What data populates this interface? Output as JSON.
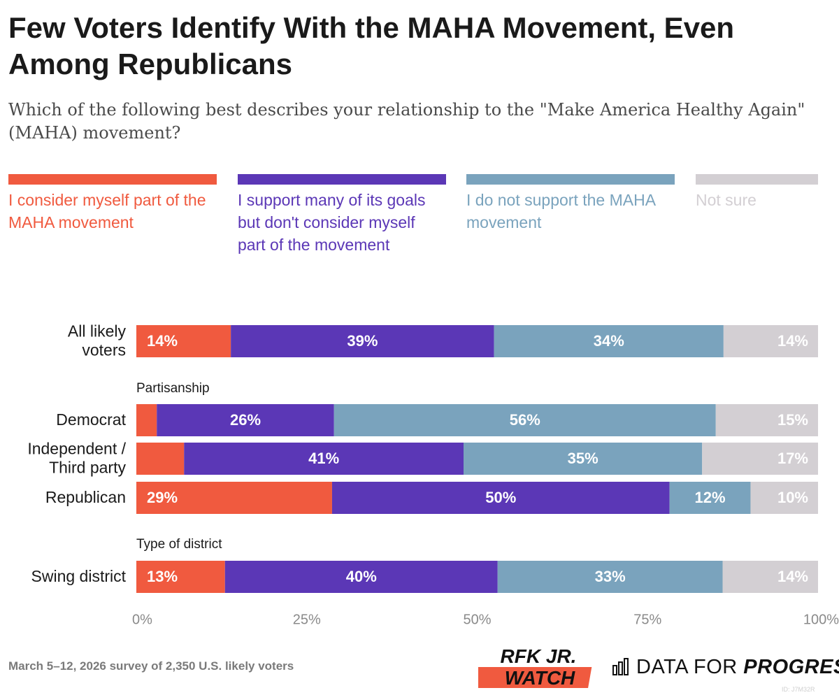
{
  "chart_data": {
    "type": "bar",
    "orientation": "horizontal",
    "stacked": true,
    "title": "Few Voters Identify With the MAHA Movement, Even Among Republicans",
    "subtitle": "Which of the following best describes your relationship to the \"Make America Healthy Again\" (MAHA) movement?",
    "series": [
      {
        "name": "I consider myself part of the MAHA movement",
        "color": "#f05a3f"
      },
      {
        "name": "I support many of its goals but don't consider myself part of the movement",
        "color": "#5b37b6"
      },
      {
        "name": "I do not support the MAHA movement",
        "color": "#7aa3bd"
      },
      {
        "name": "Not sure",
        "color": "#d3cfd3"
      }
    ],
    "groups": [
      {
        "heading": "",
        "rows": [
          {
            "label": [
              "All likely",
              "voters"
            ],
            "values": [
              14,
              39,
              34,
              14
            ],
            "labels": [
              "14%",
              "39%",
              "34%",
              "14%"
            ]
          }
        ]
      },
      {
        "heading": "Partisanship",
        "rows": [
          {
            "label": [
              "Democrat"
            ],
            "values": [
              3,
              26,
              56,
              15
            ],
            "labels": [
              "",
              "26%",
              "56%",
              "15%"
            ]
          },
          {
            "label": [
              "Independent /",
              "Third party"
            ],
            "values": [
              7,
              41,
              35,
              17
            ],
            "labels": [
              "",
              "41%",
              "35%",
              "17%"
            ]
          },
          {
            "label": [
              "Republican"
            ],
            "values": [
              29,
              50,
              12,
              10
            ],
            "labels": [
              "29%",
              "50%",
              "12%",
              "10%"
            ]
          }
        ]
      },
      {
        "heading": "Type of district",
        "rows": [
          {
            "label": [
              "Swing district"
            ],
            "values": [
              13,
              40,
              33,
              14
            ],
            "labels": [
              "13%",
              "40%",
              "33%",
              "14%"
            ]
          }
        ]
      }
    ],
    "x_ticks": [
      "0%",
      "25%",
      "50%",
      "75%",
      "100%"
    ],
    "xlim": [
      0,
      100
    ]
  },
  "footer": {
    "note": "March 5–12, 2026 survey of 2,350 U.S. likely voters",
    "logo_rfk_line1": "RFK JR.",
    "logo_rfk_line2": "WATCH",
    "logo_dfp_part1": "DATA FOR ",
    "logo_dfp_part2": "PROGRESS",
    "id": "ID: J7M32R"
  },
  "colors": {
    "text": "#1a1a1a",
    "tick": "#8a8a8a",
    "bar_text": "#ffffff",
    "notsure_text": "#ffffff"
  }
}
